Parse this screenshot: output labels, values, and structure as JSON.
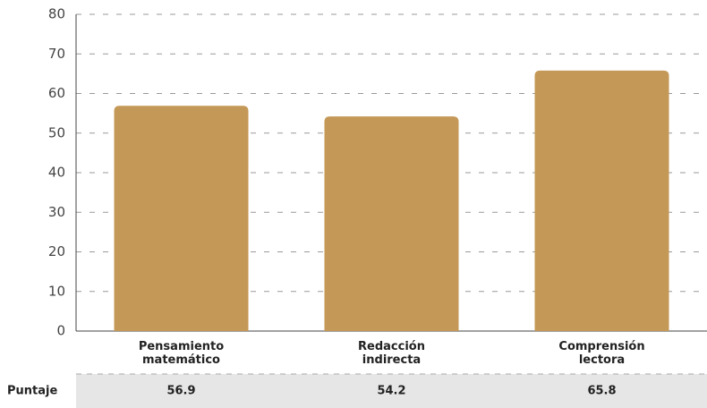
{
  "chart_data": {
    "type": "bar",
    "categories": [
      "Pensamiento matemático",
      "Redacción indirecta",
      "Comprensión lectora"
    ],
    "values": [
      56.9,
      54.2,
      65.8
    ],
    "color": "#c49856",
    "ylim": [
      0,
      80
    ],
    "yticks": [
      0,
      10,
      20,
      30,
      40,
      50,
      60,
      70,
      80
    ],
    "grid": true,
    "table_row_label": "Puntaje"
  }
}
